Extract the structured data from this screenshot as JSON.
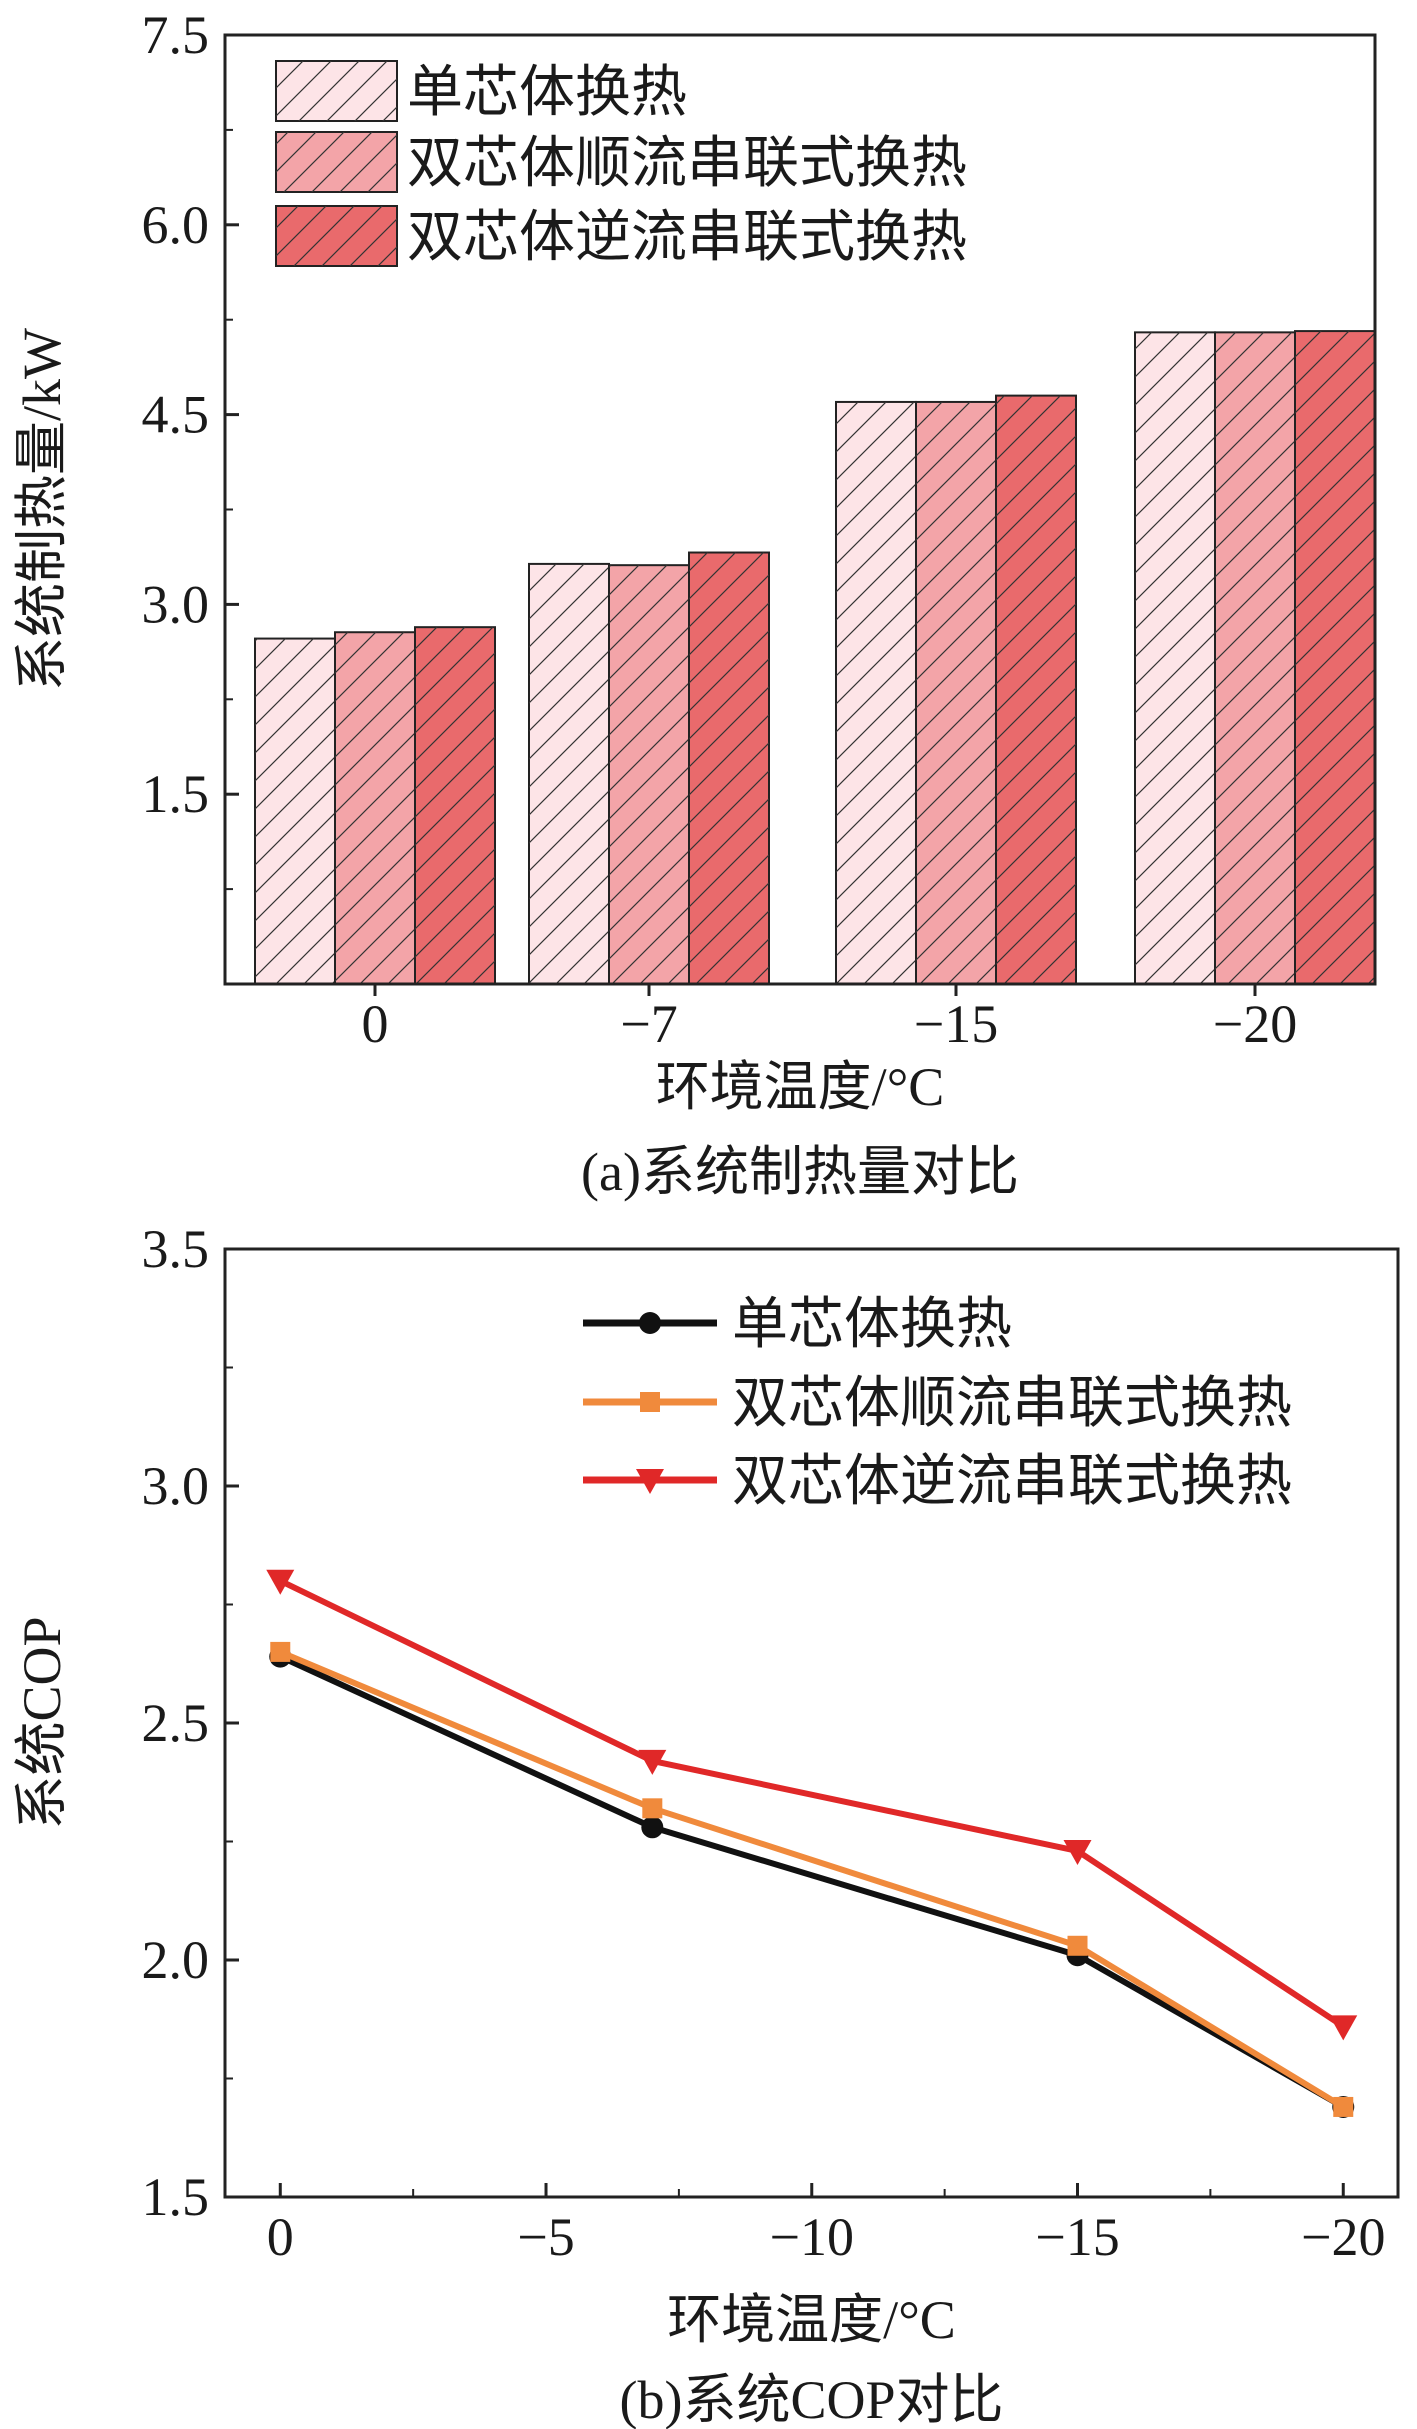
{
  "chart_data": [
    {
      "type": "bar",
      "title": "",
      "caption": "(a)系统制热量对比",
      "xlabel": "环境温度/°C",
      "ylabel": "系统制热量/kW",
      "categories": [
        "0",
        "−7",
        "−15",
        "−20"
      ],
      "ylim": [
        0,
        7.5
      ],
      "yticks": [
        "1.5",
        "3.0",
        "4.5",
        "6.0",
        "7.5"
      ],
      "ytick_values": [
        1.5,
        3.0,
        4.5,
        6.0,
        7.5
      ],
      "legend_position": "top-left",
      "series": [
        {
          "name": "单芯体换热",
          "color": "#fde4e7",
          "values": [
            2.73,
            3.32,
            4.6,
            5.15
          ]
        },
        {
          "name": "双芯体顺流串联式换热",
          "color": "#f3a4a8",
          "values": [
            2.78,
            3.31,
            4.6,
            5.15
          ]
        },
        {
          "name": "双芯体逆流串联式换热",
          "color": "#e96a6c",
          "values": [
            2.82,
            3.41,
            4.65,
            5.16
          ]
        }
      ]
    },
    {
      "type": "line",
      "title": "",
      "caption": "(b)系统COP对比",
      "xlabel": "环境温度/°C",
      "ylabel": "系统COP",
      "x": [
        0,
        -7,
        -15,
        -20
      ],
      "xlim": [
        1.04,
        -21.03
      ],
      "ylim": [
        1.5,
        3.5
      ],
      "xticks": [
        "0",
        "−5",
        "−10",
        "−15",
        "−20"
      ],
      "xtick_values": [
        0,
        -5,
        -10,
        -15,
        -20
      ],
      "yticks": [
        "1.5",
        "2.0",
        "2.5",
        "3.0",
        "3.5"
      ],
      "ytick_values": [
        1.5,
        2.0,
        2.5,
        3.0,
        3.5
      ],
      "legend_position": "top-right",
      "series": [
        {
          "name": "单芯体换热",
          "color": "#111111",
          "marker": "circle",
          "values": [
            2.64,
            2.28,
            2.01,
            1.69
          ]
        },
        {
          "name": "双芯体顺流串联式换热",
          "color": "#f08a3c",
          "marker": "square",
          "values": [
            2.65,
            2.32,
            2.03,
            1.69
          ]
        },
        {
          "name": "双芯体逆流串联式换热",
          "color": "#e02828",
          "marker": "triangle-down",
          "values": [
            2.8,
            2.42,
            2.23,
            1.86
          ]
        }
      ]
    }
  ]
}
